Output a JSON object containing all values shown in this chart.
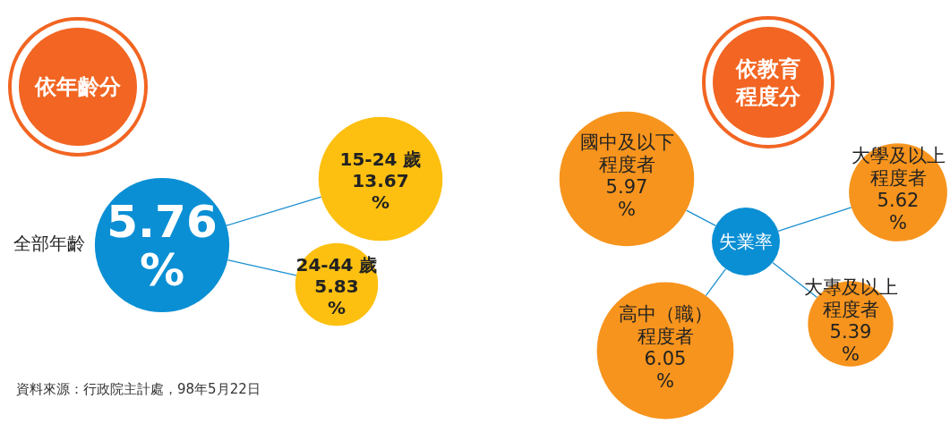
{
  "chart_data": [
    {
      "type": "other",
      "title": "依年齡分",
      "categories": [
        "全部年齡",
        "15-24 歲",
        "24-44 歲"
      ],
      "values": [
        5.76,
        13.67,
        5.83
      ],
      "value_labels": [
        "5.76 %",
        "13.67 %",
        "5.83 %"
      ],
      "colors": [
        "#0a8fd4",
        "#fdc010",
        "#fdc010"
      ],
      "annotations": [
        "資料來源：行政院主計處，98年5月22日"
      ]
    },
    {
      "type": "other",
      "title": "依教育程度分",
      "subtitle": "失業率",
      "categories": [
        "國中及以下程度者",
        "高中（職）程度者",
        "大專及以上程度者",
        "大學及以上程度者"
      ],
      "values": [
        5.97,
        6.05,
        5.39,
        5.62
      ],
      "value_labels": [
        "5.97 %",
        "6.05 %",
        "5.39 %",
        "5.62 %"
      ],
      "colors": [
        "#f7941d",
        "#f7941d",
        "#f7941d",
        "#f7941d"
      ]
    }
  ]
}
